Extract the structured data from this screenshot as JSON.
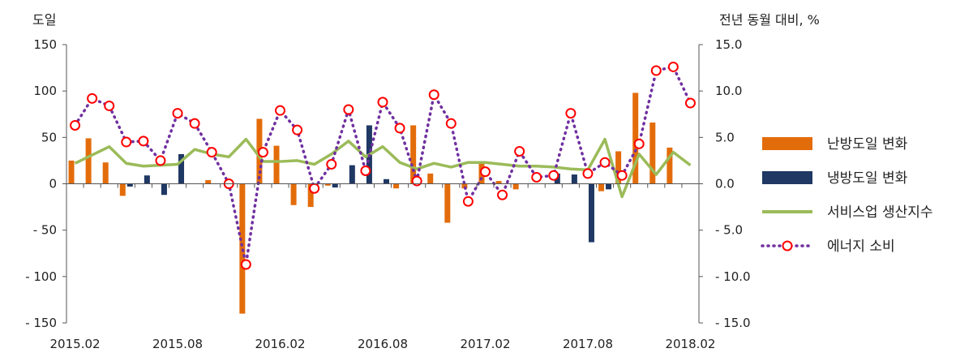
{
  "chart_data": {
    "type": "bar",
    "y_left_label": "도일",
    "y_right_label": "전년 동월 대비, %",
    "y_left_range": [
      -150,
      150
    ],
    "y_left_ticks": [
      "150",
      "100",
      "50",
      "0",
      "- 50",
      "- 100",
      "- 150"
    ],
    "y_left_tick_values": [
      150,
      100,
      50,
      0,
      -50,
      -100,
      -150
    ],
    "y_right_range": [
      -15,
      15
    ],
    "y_right_ticks": [
      "15.0",
      "10.0",
      "5.0",
      "0.0",
      "- 5.0",
      "- 10.0",
      "- 15.0"
    ],
    "y_right_tick_values": [
      15,
      10,
      5,
      0,
      -5,
      -10,
      -15
    ],
    "x_ticks": [
      "2015.02",
      "2015.08",
      "2016.02",
      "2016.08",
      "2017.02",
      "2017.08",
      "2018.02"
    ],
    "x_tick_indices": [
      0,
      6,
      12,
      18,
      24,
      30,
      36
    ],
    "categories": [
      "2015.02",
      "2015.03",
      "2015.04",
      "2015.05",
      "2015.06",
      "2015.07",
      "2015.08",
      "2015.09",
      "2015.10",
      "2015.11",
      "2015.12",
      "2016.01",
      "2016.02",
      "2016.03",
      "2016.04",
      "2016.05",
      "2016.06",
      "2016.07",
      "2016.08",
      "2016.09",
      "2016.10",
      "2016.11",
      "2016.12",
      "2017.01",
      "2017.02",
      "2017.03",
      "2017.04",
      "2017.05",
      "2017.06",
      "2017.07",
      "2017.08",
      "2017.09",
      "2017.10",
      "2017.11",
      "2017.12",
      "2018.01",
      "2018.02"
    ],
    "series": [
      {
        "name": "난방도일 변화",
        "type": "bar",
        "axis": "left",
        "color": "#E36C0A",
        "values": [
          25,
          49,
          23,
          -13,
          0,
          0,
          0,
          0,
          4,
          0,
          -140,
          70,
          41,
          -23,
          -25,
          -2,
          0,
          0,
          0,
          -5,
          63,
          11,
          -42,
          -5,
          22,
          3,
          -6,
          0,
          0,
          0,
          0,
          -8,
          35,
          98,
          66,
          39,
          0
        ]
      },
      {
        "name": "냉방도일 변화",
        "type": "bar",
        "axis": "left",
        "color": "#1F3864",
        "values": [
          0,
          0,
          0,
          -3,
          9,
          -12,
          32,
          0,
          0,
          0,
          0,
          0,
          0,
          0,
          0,
          -4,
          20,
          63,
          5,
          0,
          0,
          0,
          0,
          0,
          0,
          0,
          0,
          0,
          11,
          10,
          -63,
          -6,
          0,
          0,
          0,
          0,
          0
        ]
      },
      {
        "name": "서비스업 생산지수",
        "type": "line",
        "axis": "right",
        "color": "#9BBB59",
        "values": [
          2.2,
          3.1,
          4.0,
          2.2,
          1.9,
          2.0,
          2.1,
          3.7,
          3.2,
          2.9,
          4.8,
          2.4,
          2.4,
          2.5,
          2.1,
          3.2,
          4.6,
          2.9,
          4.0,
          2.3,
          1.6,
          2.2,
          1.8,
          2.3,
          2.3,
          2.1,
          1.9,
          1.9,
          1.8,
          1.6,
          1.5,
          4.8,
          -1.4,
          3.2,
          1.0,
          3.4,
          2.0
        ]
      },
      {
        "name": "에너지 소비",
        "type": "line-dotted-markers",
        "axis": "right",
        "color": "#7030A0",
        "marker_color": "#FF0000",
        "values": [
          6.3,
          9.2,
          8.4,
          4.5,
          4.6,
          2.5,
          7.6,
          6.5,
          3.4,
          0.0,
          -8.7,
          3.4,
          7.9,
          5.8,
          -0.5,
          2.1,
          8.0,
          1.4,
          8.8,
          6.0,
          0.3,
          9.6,
          6.5,
          -1.9,
          1.3,
          -1.2,
          3.5,
          0.7,
          0.9,
          7.6,
          1.1,
          2.3,
          0.9,
          4.3,
          12.2,
          12.6,
          8.7
        ]
      }
    ],
    "legend_position": "right",
    "grid": false
  }
}
